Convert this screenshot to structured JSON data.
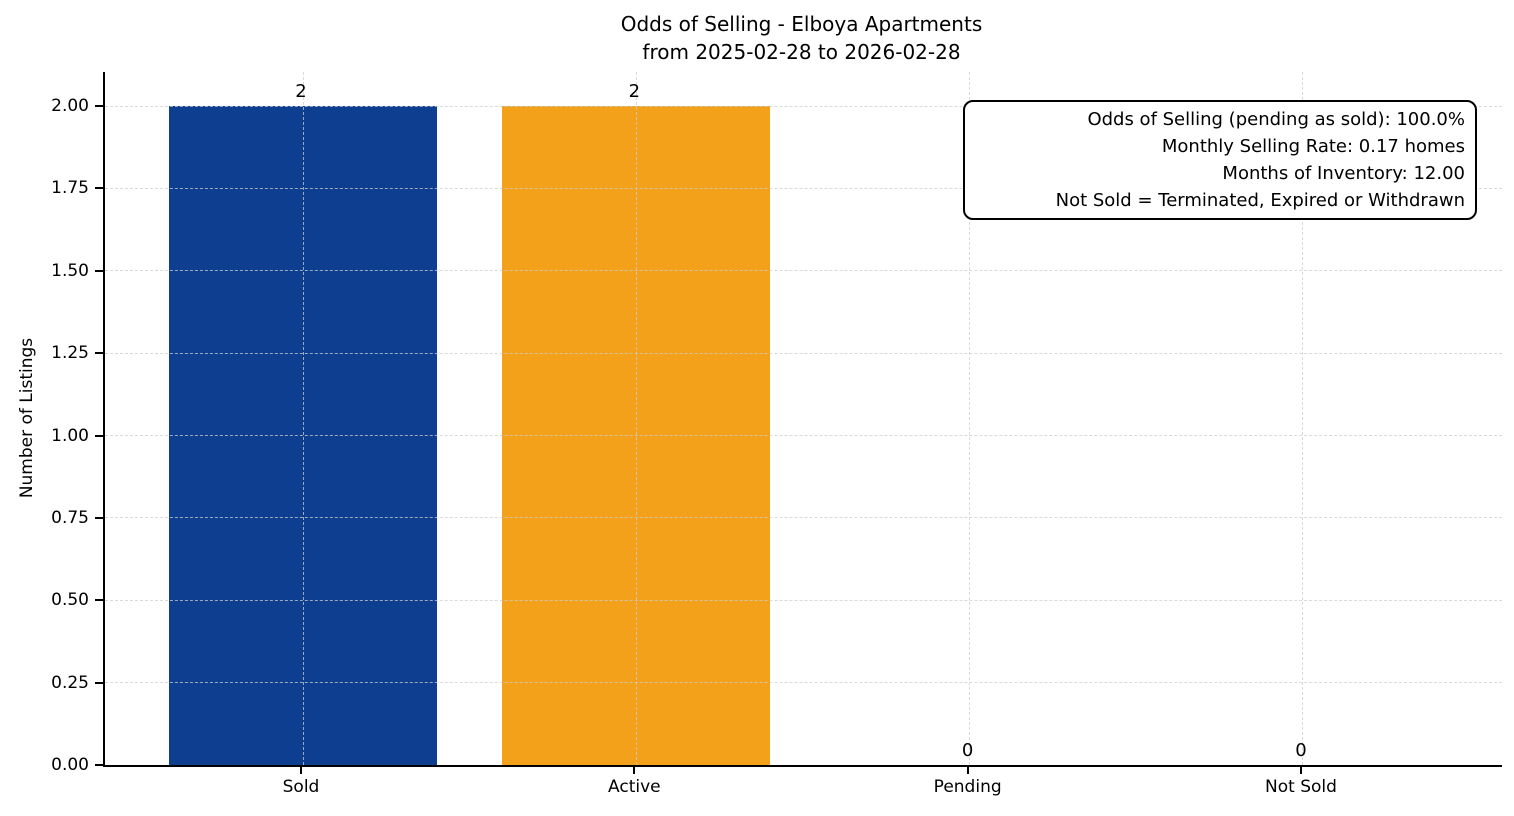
{
  "figure": {
    "title_line1": "Odds of Selling - Elboya Apartments",
    "title_line2": "from 2025-02-28 to 2026-02-28",
    "ylabel": "Number of Listings"
  },
  "annotation": {
    "lines": [
      "Odds of Selling (pending as sold): 100.0%",
      "Monthly Selling Rate: 0.17 homes",
      "Months of Inventory: 12.00",
      "Not Sold = Terminated, Expired or Withdrawn"
    ]
  },
  "chart_data": {
    "type": "bar",
    "title": "Odds of Selling - Elboya Apartments\nfrom 2025-02-28 to 2026-02-28",
    "categories": [
      "Sold",
      "Active",
      "Pending",
      "Not Sold"
    ],
    "values": [
      2,
      2,
      0,
      0
    ],
    "value_labels": [
      "2",
      "2",
      "0",
      "0"
    ],
    "bar_colors": [
      "#0d3e90",
      "#f3a01b",
      null,
      null
    ],
    "xlabel": "",
    "ylabel": "Number of Listings",
    "ylim": [
      0,
      2.1
    ],
    "yticks": [
      "0.00",
      "0.25",
      "0.50",
      "0.75",
      "1.00",
      "1.25",
      "1.50",
      "1.75",
      "2.00"
    ],
    "grid": "dashed both axes, drawn over bars",
    "legend": "none"
  },
  "colors": {
    "sold_bar": "#0d3e90",
    "active_bar": "#f3a01b",
    "grid": "#cdcdcd",
    "axis": "#000000",
    "background": "#ffffff",
    "text": "#000000"
  }
}
